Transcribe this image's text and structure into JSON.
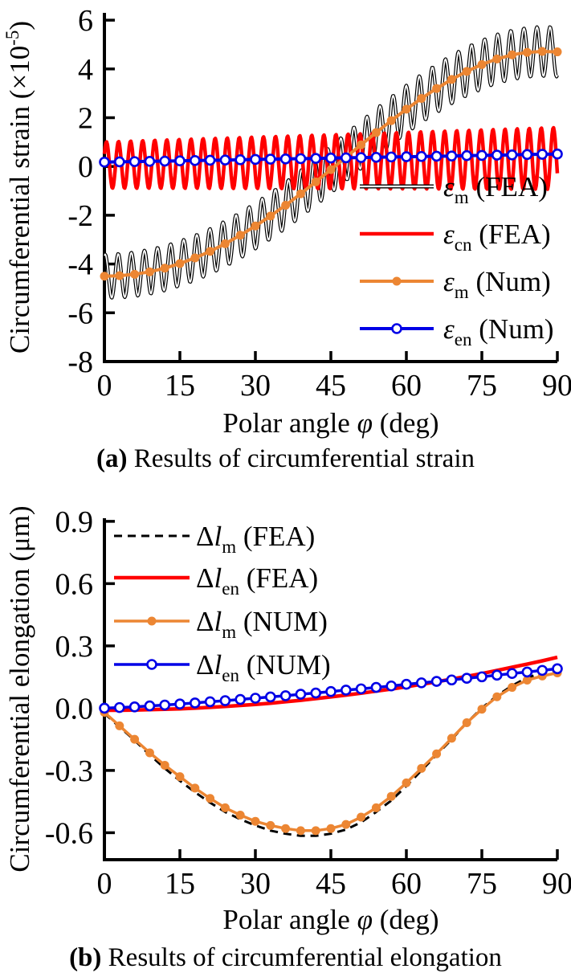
{
  "figure": {
    "background": "#FFFFFF",
    "text_color": "#000000"
  },
  "chart_data": [
    {
      "type": "line",
      "caption_bold": "(a)",
      "caption_rest": " Results of circumferential strain",
      "xlabel": "Polar angle φ (deg)",
      "xlabel_pre": "Polar angle ",
      "xlabel_italic": "φ",
      "xlabel_post": " (deg)",
      "ylabel": "Circumferential strain (×10-5)",
      "ylabel_pre": "Circumferential strain (×10",
      "ylabel_sup": "-5",
      "ylabel_post": ")",
      "xlim": [
        0,
        90
      ],
      "ylim": [
        -8,
        6.3
      ],
      "x_ticks": [
        0,
        15,
        30,
        45,
        60,
        75,
        90
      ],
      "x_tick_labels": [
        "0",
        "15",
        "30",
        "45",
        "60",
        "75",
        "90"
      ],
      "y_ticks": [
        6,
        4,
        2,
        0,
        -2,
        -4,
        -6,
        -8
      ],
      "y_tick_labels": [
        "6",
        "4",
        "2",
        "0",
        "-2",
        "-4",
        "-6",
        "-8"
      ],
      "grid": false,
      "legend_position": "inside lower-right",
      "series": [
        {
          "name": "eps_m_FEA",
          "kind": "oscillating",
          "style": "double-black",
          "color": "#000000",
          "period_deg": 2.6,
          "amplitude": [
            0.9,
            1.02
          ],
          "phase": 1.2,
          "center_x": [
            0,
            3,
            6,
            9,
            12,
            15,
            18,
            21,
            24,
            27,
            30,
            33,
            36,
            39,
            42,
            45,
            48,
            51,
            54,
            57,
            60,
            63,
            66,
            69,
            72,
            75,
            78,
            81,
            84,
            87,
            90
          ],
          "center_y": [
            -4.5,
            -4.48,
            -4.42,
            -4.32,
            -4.17,
            -3.98,
            -3.75,
            -3.48,
            -3.17,
            -2.82,
            -2.44,
            -2.03,
            -1.59,
            -1.12,
            -0.63,
            -0.13,
            0.38,
            0.89,
            1.39,
            1.88,
            2.35,
            2.79,
            3.2,
            3.57,
            3.9,
            4.18,
            4.41,
            4.58,
            4.68,
            4.72,
            4.7
          ]
        },
        {
          "name": "eps_cn_FEA",
          "kind": "oscillating",
          "style": "solid",
          "color": "#FF0000",
          "width": 4.5,
          "period_deg": 2.4,
          "amplitude": [
            0.95,
            1.27
          ],
          "phase": 0.5,
          "center_x": [
            0,
            90
          ],
          "center_y": [
            0.06,
            0.33
          ]
        },
        {
          "name": "eps_m_Num",
          "kind": "line",
          "color": "#EC8633",
          "width": 4,
          "marker": "filled",
          "marker_r": 5.5,
          "x": [
            0,
            3,
            6,
            9,
            12,
            15,
            18,
            21,
            24,
            27,
            30,
            33,
            36,
            39,
            42,
            45,
            48,
            51,
            54,
            57,
            60,
            63,
            66,
            69,
            72,
            75,
            78,
            81,
            84,
            87,
            90
          ],
          "y": [
            -4.5,
            -4.48,
            -4.42,
            -4.32,
            -4.17,
            -3.98,
            -3.75,
            -3.48,
            -3.17,
            -2.82,
            -2.44,
            -2.03,
            -1.59,
            -1.12,
            -0.63,
            -0.13,
            0.38,
            0.89,
            1.39,
            1.88,
            2.35,
            2.79,
            3.2,
            3.57,
            3.9,
            4.18,
            4.41,
            4.58,
            4.68,
            4.72,
            4.7
          ]
        },
        {
          "name": "eps_en_Num",
          "kind": "line",
          "color": "#0000E6",
          "width": 4,
          "marker": "open",
          "marker_r": 5.5,
          "x": [
            0,
            3,
            6,
            9,
            12,
            15,
            18,
            21,
            24,
            27,
            30,
            33,
            36,
            39,
            42,
            45,
            48,
            51,
            54,
            57,
            60,
            63,
            66,
            69,
            72,
            75,
            78,
            81,
            84,
            87,
            90
          ],
          "y": [
            0.18,
            0.19,
            0.2,
            0.21,
            0.22,
            0.23,
            0.245,
            0.255,
            0.265,
            0.275,
            0.29,
            0.3,
            0.31,
            0.32,
            0.33,
            0.345,
            0.355,
            0.365,
            0.375,
            0.39,
            0.4,
            0.41,
            0.42,
            0.43,
            0.445,
            0.455,
            0.465,
            0.475,
            0.49,
            0.5,
            0.51
          ]
        }
      ],
      "legend": [
        {
          "label": "ε_m (FEA)",
          "italic": "ε",
          "sub": "m",
          "rest": " (FEA)"
        },
        {
          "label": "ε_cn (FEA)",
          "italic": "ε",
          "sub": "cn",
          "rest": " (FEA)"
        },
        {
          "label": "ε_m (Num)",
          "italic": "ε",
          "sub": "m",
          "rest": " (Num)"
        },
        {
          "label": "ε_en (Num)",
          "italic": "ε",
          "sub": "en",
          "rest": " (Num)"
        }
      ]
    },
    {
      "type": "line",
      "caption_bold": "(b)",
      "caption_rest": " Results of circumferential elongation",
      "xlabel": "Polar angle φ (deg)",
      "xlabel_pre": "Polar angle ",
      "xlabel_italic": "φ",
      "xlabel_post": " (deg)",
      "ylabel": "Circumferential elongation (μm)",
      "xlim": [
        0,
        90
      ],
      "ylim": [
        -0.73,
        0.915
      ],
      "x_ticks": [
        0,
        15,
        30,
        45,
        60,
        75,
        90
      ],
      "x_tick_labels": [
        "0",
        "15",
        "30",
        "45",
        "60",
        "75",
        "90"
      ],
      "y_ticks": [
        0.9,
        0.6,
        0.3,
        0.0,
        -0.3,
        -0.6
      ],
      "y_tick_labels": [
        "0.9",
        "0.6",
        "0.3",
        "0.0",
        "-0.3",
        "-0.6"
      ],
      "grid": false,
      "legend_position": "inside upper-left",
      "series": [
        {
          "name": "dl_m_FEA",
          "kind": "line",
          "style": "dashed",
          "color": "#000000",
          "width": 3,
          "dash": [
            10,
            7
          ],
          "x": [
            0,
            3,
            6,
            9,
            12,
            15,
            18,
            21,
            24,
            27,
            30,
            33,
            36,
            39,
            42,
            45,
            48,
            51,
            54,
            57,
            60,
            63,
            66,
            69,
            72,
            75,
            78,
            81,
            84,
            87,
            90
          ],
          "y": [
            -0.025,
            -0.09,
            -0.155,
            -0.225,
            -0.29,
            -0.35,
            -0.405,
            -0.455,
            -0.5,
            -0.535,
            -0.565,
            -0.59,
            -0.605,
            -0.615,
            -0.615,
            -0.605,
            -0.585,
            -0.55,
            -0.5,
            -0.445,
            -0.375,
            -0.3,
            -0.225,
            -0.15,
            -0.07,
            0.0,
            0.06,
            0.108,
            0.148,
            0.168,
            0.185
          ]
        },
        {
          "name": "dl_en_FEA",
          "kind": "line",
          "color": "#FF0000",
          "width": 4.5,
          "x": [
            0,
            3,
            6,
            9,
            12,
            15,
            18,
            21,
            24,
            27,
            30,
            33,
            36,
            39,
            42,
            45,
            48,
            51,
            54,
            57,
            60,
            63,
            66,
            69,
            72,
            75,
            78,
            81,
            84,
            87,
            90
          ],
          "y": [
            -0.01,
            -0.01,
            -0.009,
            -0.007,
            -0.005,
            -0.003,
            0.0,
            0.004,
            0.008,
            0.013,
            0.018,
            0.024,
            0.031,
            0.038,
            0.046,
            0.054,
            0.063,
            0.072,
            0.082,
            0.092,
            0.103,
            0.115,
            0.127,
            0.14,
            0.153,
            0.167,
            0.182,
            0.197,
            0.212,
            0.228,
            0.245
          ]
        },
        {
          "name": "dl_m_NUM",
          "kind": "line",
          "color": "#EC8633",
          "width": 3.5,
          "marker": "filled",
          "marker_r": 5.5,
          "x": [
            0,
            3,
            6,
            9,
            12,
            15,
            18,
            21,
            24,
            27,
            30,
            33,
            36,
            39,
            42,
            45,
            48,
            51,
            54,
            57,
            60,
            63,
            66,
            69,
            72,
            75,
            78,
            81,
            84,
            87,
            90
          ],
          "y": [
            -0.02,
            -0.085,
            -0.15,
            -0.215,
            -0.275,
            -0.33,
            -0.385,
            -0.435,
            -0.48,
            -0.515,
            -0.545,
            -0.565,
            -0.58,
            -0.59,
            -0.59,
            -0.58,
            -0.56,
            -0.525,
            -0.48,
            -0.425,
            -0.36,
            -0.29,
            -0.22,
            -0.145,
            -0.07,
            -0.005,
            0.055,
            0.1,
            0.135,
            0.155,
            0.17
          ]
        },
        {
          "name": "dl_en_NUM",
          "kind": "line",
          "color": "#0000E6",
          "width": 3.5,
          "marker": "open",
          "marker_r": 5.5,
          "x": [
            0,
            3,
            6,
            9,
            12,
            15,
            18,
            21,
            24,
            27,
            30,
            33,
            36,
            39,
            42,
            45,
            48,
            51,
            54,
            57,
            60,
            63,
            66,
            69,
            72,
            75,
            78,
            81,
            84,
            87,
            90
          ],
          "y": [
            0.0,
            0.003,
            0.006,
            0.011,
            0.015,
            0.02,
            0.025,
            0.031,
            0.036,
            0.042,
            0.048,
            0.054,
            0.06,
            0.067,
            0.073,
            0.08,
            0.087,
            0.093,
            0.1,
            0.107,
            0.115,
            0.122,
            0.129,
            0.136,
            0.144,
            0.151,
            0.159,
            0.167,
            0.174,
            0.182,
            0.19
          ]
        }
      ],
      "legend": [
        {
          "label": "Δl_m (FEA)",
          "pre": "Δ",
          "italic": "l",
          "sub": "m",
          "rest": " (FEA)"
        },
        {
          "label": "Δl_en (FEA)",
          "pre": "Δ",
          "italic": "l",
          "sub": "en",
          "rest": " (FEA)"
        },
        {
          "label": "Δl_m (NUM)",
          "pre": "Δ",
          "italic": "l",
          "sub": "m",
          "rest": " (NUM)"
        },
        {
          "label": "Δl_en (NUM)",
          "pre": "Δ",
          "italic": "l",
          "sub": "en",
          "rest": " (NUM)"
        }
      ]
    }
  ]
}
